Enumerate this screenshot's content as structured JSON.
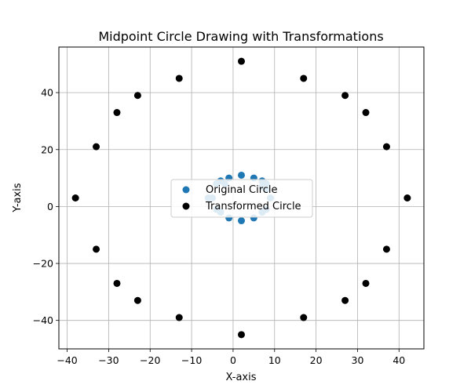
{
  "chart_data": {
    "type": "scatter",
    "title": "Midpoint Circle Drawing with Transformations",
    "xlabel": "X-axis",
    "ylabel": "Y-axis",
    "xlim": [
      -42,
      46
    ],
    "ylim": [
      -50,
      56
    ],
    "xticks": [
      -40,
      -30,
      -20,
      -10,
      0,
      10,
      20,
      30,
      40
    ],
    "yticks": [
      -40,
      -20,
      0,
      20,
      40
    ],
    "grid": true,
    "legend_position": "center",
    "series": [
      {
        "name": "Original Circle",
        "color": "#1f77b4",
        "points": [
          [
            2,
            11
          ],
          [
            5,
            10
          ],
          [
            7,
            9
          ],
          [
            8,
            8
          ],
          [
            -1,
            10
          ],
          [
            -3,
            9
          ],
          [
            -4,
            8
          ],
          [
            -5,
            3
          ],
          [
            -6,
            3
          ],
          [
            -4,
            -1
          ],
          [
            -3,
            -2
          ],
          [
            -1,
            -4
          ],
          [
            2,
            -5
          ],
          [
            5,
            -4
          ],
          [
            7,
            -2
          ],
          [
            8,
            -1
          ],
          [
            9,
            3
          ],
          [
            8,
            6
          ],
          [
            7,
            7
          ],
          [
            -2,
            8
          ]
        ]
      },
      {
        "name": "Transformed Circle",
        "color": "#000000",
        "points": [
          [
            2,
            51
          ],
          [
            17,
            45
          ],
          [
            -13,
            45
          ],
          [
            27,
            39
          ],
          [
            -23,
            39
          ],
          [
            32,
            33
          ],
          [
            -28,
            33
          ],
          [
            37,
            21
          ],
          [
            -33,
            21
          ],
          [
            42,
            3
          ],
          [
            -38,
            3
          ],
          [
            37,
            -15
          ],
          [
            -33,
            -15
          ],
          [
            32,
            -27
          ],
          [
            -28,
            -27
          ],
          [
            27,
            -33
          ],
          [
            -23,
            -33
          ],
          [
            17,
            -39
          ],
          [
            -13,
            -39
          ],
          [
            2,
            -45
          ]
        ]
      }
    ]
  }
}
